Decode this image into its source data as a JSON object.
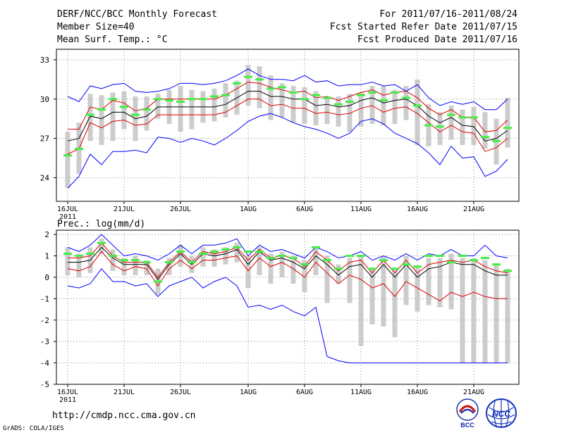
{
  "header": {
    "title": "DERF/NCC/BCC Monthly Forecast",
    "member_size": "Member Size=40",
    "temp_label": "Mean Surf. Temp.: °C",
    "forecast_for": "For 2011/07/16-2011/08/24",
    "start_date": "Fcst Started Refer Date 2011/07/15",
    "produced_date": "Fcst Produced Date 2011/07/16"
  },
  "footer": {
    "url": "http://cmdp.ncc.cma.gov.cn",
    "grads": "GrADS: COLA/IGES",
    "logo_bcc": "BCC",
    "logo_ncc": "NCC"
  },
  "colors": {
    "max": "#0000ff",
    "min": "#0000ff",
    "upper": "#dd0000",
    "lower": "#dd0000",
    "mean": "#000000",
    "box": "#cccccc",
    "marker": "#44ee44",
    "grid": "#888888"
  },
  "chart_data": [
    {
      "type": "line",
      "title": "Mean Surf. Temp.: °C",
      "x": [
        "16JUL",
        "17JUL",
        "18JUL",
        "19JUL",
        "20JUL",
        "21JUL",
        "22JUL",
        "23JUL",
        "24JUL",
        "25JUL",
        "26JUL",
        "27JUL",
        "28JUL",
        "29JUL",
        "30JUL",
        "31JUL",
        "1AUG",
        "2AUG",
        "3AUG",
        "4AUG",
        "5AUG",
        "6AUG",
        "7AUG",
        "8AUG",
        "9AUG",
        "10AUG",
        "11AUG",
        "12AUG",
        "13AUG",
        "14AUG",
        "15AUG",
        "16AUG",
        "17AUG",
        "18AUG",
        "19AUG",
        "20AUG",
        "21AUG",
        "22AUG",
        "23AUG",
        "24AUG"
      ],
      "x_ticks": [
        "16JUL",
        "21JUL",
        "26JUL",
        "1AUG",
        "6AUG",
        "11AUG",
        "16AUG",
        "21AUG"
      ],
      "x_year": "2011",
      "ylim": [
        22.2,
        33.8
      ],
      "y_ticks": [
        24,
        27,
        30,
        33
      ],
      "series": [
        {
          "name": "max",
          "values": [
            23.2,
            24.1,
            25.8,
            25.0,
            26.0,
            26.0,
            26.1,
            25.9,
            27.1,
            27.0,
            26.7,
            27.0,
            26.8,
            26.5,
            27.0,
            27.6,
            28.3,
            28.7,
            28.9,
            28.6,
            28.2,
            27.9,
            27.7,
            27.4,
            27.0,
            27.4,
            28.3,
            28.5,
            28.1,
            27.4,
            27.0,
            26.6,
            25.9,
            25.0,
            26.4,
            25.5,
            25.6,
            24.1,
            24.5,
            25.4
          ]
        },
        {
          "name": "lower",
          "values": [
            25.8,
            26.2,
            28.2,
            27.8,
            28.3,
            28.4,
            28.0,
            28.1,
            28.8,
            28.8,
            28.8,
            28.8,
            28.8,
            28.8,
            29.0,
            29.5,
            30.0,
            30.0,
            29.5,
            29.6,
            29.3,
            29.3,
            28.9,
            29.0,
            28.8,
            28.9,
            29.3,
            29.5,
            29.0,
            29.3,
            29.4,
            28.9,
            28.2,
            27.5,
            28.0,
            27.5,
            27.4,
            26.0,
            26.3,
            27.0
          ]
        },
        {
          "name": "mean",
          "values": [
            26.8,
            27.0,
            28.7,
            28.5,
            29.0,
            29.0,
            28.5,
            28.7,
            29.4,
            29.4,
            29.4,
            29.4,
            29.4,
            29.4,
            29.6,
            30.1,
            30.6,
            30.6,
            30.2,
            30.2,
            30.0,
            30.0,
            29.5,
            29.6,
            29.4,
            29.5,
            29.9,
            30.1,
            29.7,
            29.9,
            30.0,
            29.5,
            28.7,
            28.2,
            28.6,
            28.0,
            27.9,
            26.8,
            27.0,
            27.6
          ]
        },
        {
          "name": "upper",
          "values": [
            27.7,
            27.7,
            29.4,
            29.2,
            29.9,
            29.7,
            29.1,
            29.3,
            30.0,
            30.0,
            30.0,
            30.0,
            30.0,
            30.0,
            30.3,
            30.8,
            31.3,
            31.2,
            30.9,
            30.7,
            30.5,
            30.6,
            30.1,
            30.2,
            29.9,
            30.2,
            30.5,
            30.7,
            30.3,
            30.5,
            30.6,
            30.1,
            29.3,
            28.8,
            29.2,
            28.6,
            28.6,
            27.5,
            27.6,
            28.4
          ]
        },
        {
          "name": "min",
          "values": [
            30.2,
            29.8,
            31.0,
            30.8,
            31.1,
            31.2,
            30.6,
            30.5,
            30.6,
            30.8,
            31.2,
            31.2,
            31.1,
            31.2,
            31.4,
            31.8,
            32.3,
            31.8,
            31.5,
            31.5,
            31.4,
            31.8,
            31.3,
            31.4,
            31.0,
            31.1,
            31.1,
            31.3,
            31.0,
            31.1,
            30.6,
            31.1,
            30.1,
            29.5,
            29.8,
            29.6,
            29.8,
            29.2,
            29.2,
            30.0
          ]
        }
      ],
      "box_low": [
        23.2,
        24.3,
        26.8,
        26.5,
        26.8,
        27.7,
        26.8,
        27.6,
        28.5,
        28.1,
        27.5,
        27.7,
        28.2,
        28.3,
        28.6,
        28.8,
        29.5,
        29.3,
        28.4,
        28.6,
        28.2,
        28.1,
        28.0,
        28.1,
        27.9,
        27.5,
        27.9,
        28.1,
        28.0,
        28.1,
        28.4,
        26.5,
        26.4,
        26.5,
        26.9,
        26.5,
        26.5,
        26.2,
        25.0,
        26.3
      ],
      "box_high": [
        27.5,
        28.2,
        30.4,
        30.3,
        30.5,
        30.6,
        30.2,
        30.2,
        30.4,
        30.7,
        31.0,
        30.7,
        30.6,
        30.8,
        31.2,
        31.4,
        32.6,
        32.5,
        31.8,
        31.2,
        31.0,
        30.9,
        30.6,
        30.2,
        30.2,
        30.4,
        30.5,
        31.0,
        31.0,
        30.7,
        31.0,
        31.5,
        29.6,
        29.0,
        29.5,
        29.2,
        29.4,
        29.0,
        28.5,
        30.1
      ],
      "markers": [
        25.7,
        26.2,
        28.8,
        29.2,
        30.0,
        29.4,
        28.8,
        29.2,
        30.0,
        29.9,
        29.8,
        30.0,
        30.0,
        30.2,
        30.3,
        31.2,
        31.7,
        31.5,
        30.8,
        30.9,
        30.5,
        30.0,
        30.3,
        30.1,
        29.6,
        29.8,
        30.3,
        30.5,
        29.9,
        30.5,
        30.1,
        29.5,
        28.0,
        27.9,
        28.8,
        28.6,
        28.6,
        27.1,
        26.8,
        27.8
      ]
    },
    {
      "type": "line",
      "title": "Prec.: log(mm/d)",
      "x": [
        "16JUL",
        "17JUL",
        "18JUL",
        "19JUL",
        "20JUL",
        "21JUL",
        "22JUL",
        "23JUL",
        "24JUL",
        "25JUL",
        "26JUL",
        "27JUL",
        "28JUL",
        "29JUL",
        "30JUL",
        "31JUL",
        "1AUG",
        "2AUG",
        "3AUG",
        "4AUG",
        "5AUG",
        "6AUG",
        "7AUG",
        "8AUG",
        "9AUG",
        "10AUG",
        "11AUG",
        "12AUG",
        "13AUG",
        "14AUG",
        "15AUG",
        "16AUG",
        "17AUG",
        "18AUG",
        "19AUG",
        "20AUG",
        "21AUG",
        "22AUG",
        "23AUG",
        "24AUG"
      ],
      "x_ticks": [
        "16JUL",
        "21JUL",
        "26JUL",
        "1AUG",
        "6AUG",
        "11AUG",
        "16AUG",
        "21AUG"
      ],
      "x_year": "2011",
      "ylim": [
        -5,
        2.2
      ],
      "y_ticks": [
        -5,
        -4,
        -3,
        -2,
        -1,
        0,
        1,
        2
      ],
      "series": [
        {
          "name": "min",
          "values": [
            -0.4,
            -0.5,
            -0.3,
            0.4,
            -0.2,
            -0.2,
            -0.4,
            -0.3,
            -0.9,
            -0.4,
            -0.2,
            0.0,
            -0.5,
            -0.2,
            0.0,
            -0.4,
            -1.4,
            -1.3,
            -1.5,
            -1.3,
            -1.6,
            -1.8,
            -1.4,
            -3.7,
            -3.9,
            -4.0,
            -4.0,
            -4.0,
            -4.0,
            -4.0,
            -4.0,
            -4.0,
            -4.0,
            -4.0,
            -4.0,
            -4.0,
            -4.0,
            -4.0,
            -4.0,
            -4.0
          ]
        },
        {
          "name": "lower",
          "values": [
            0.4,
            0.3,
            0.5,
            1.2,
            0.6,
            0.3,
            0.5,
            0.4,
            -0.4,
            0.4,
            0.8,
            0.4,
            0.8,
            0.8,
            0.9,
            1.0,
            0.3,
            0.9,
            0.5,
            0.7,
            0.4,
            0.0,
            0.7,
            0.2,
            -0.3,
            0.1,
            -0.1,
            -0.5,
            -0.3,
            -0.9,
            -0.2,
            -0.5,
            -0.8,
            -1.1,
            -0.7,
            -0.9,
            -0.7,
            -0.9,
            -1.0,
            -1.0
          ]
        },
        {
          "name": "mean",
          "values": [
            0.7,
            0.7,
            0.8,
            1.4,
            0.9,
            0.6,
            0.6,
            0.6,
            -0.1,
            0.6,
            1.1,
            0.6,
            1.1,
            1.0,
            1.1,
            1.3,
            0.6,
            1.2,
            0.8,
            0.9,
            0.7,
            0.4,
            1.0,
            0.6,
            0.1,
            0.5,
            0.6,
            0.0,
            0.6,
            0.0,
            0.6,
            0.0,
            0.4,
            0.5,
            0.7,
            0.6,
            0.6,
            0.3,
            0.1,
            0.1
          ]
        },
        {
          "name": "upper",
          "values": [
            0.9,
            0.9,
            1.0,
            1.6,
            1.0,
            0.7,
            0.7,
            0.7,
            0.0,
            0.7,
            1.2,
            0.7,
            1.2,
            1.1,
            1.2,
            1.4,
            0.8,
            1.3,
            0.9,
            1.0,
            0.9,
            0.5,
            1.2,
            0.8,
            0.3,
            0.7,
            0.8,
            0.2,
            0.8,
            0.2,
            0.8,
            0.2,
            0.6,
            0.7,
            0.8,
            0.7,
            0.8,
            0.5,
            0.3,
            0.2
          ]
        },
        {
          "name": "max",
          "values": [
            1.4,
            1.2,
            1.5,
            2.0,
            1.5,
            1.0,
            1.1,
            1.0,
            0.8,
            1.1,
            1.5,
            1.1,
            1.5,
            1.5,
            1.6,
            1.8,
            1.0,
            1.5,
            1.2,
            1.3,
            1.1,
            0.9,
            1.4,
            1.2,
            0.9,
            1.0,
            1.2,
            0.8,
            1.0,
            0.8,
            1.1,
            0.8,
            1.1,
            1.0,
            1.3,
            1.0,
            1.0,
            1.5,
            1.0,
            0.9
          ]
        }
      ],
      "box_low": [
        0.1,
        0.0,
        0.2,
        1.1,
        0.3,
        0.1,
        0.1,
        0.1,
        -0.8,
        0.1,
        0.5,
        0.2,
        0.5,
        0.5,
        0.6,
        0.7,
        -0.5,
        0.1,
        -0.3,
        0.0,
        -0.3,
        -0.7,
        0.1,
        -1.2,
        -0.3,
        -1.2,
        -3.2,
        -2.2,
        -2.3,
        -2.8,
        -1.3,
        -1.6,
        -1.3,
        -1.4,
        -1.5,
        -4.0,
        -4.0,
        -4.0,
        -4.0,
        -4.0
      ],
      "box_high": [
        1.4,
        1.1,
        1.4,
        1.8,
        1.3,
        0.9,
        1.0,
        0.8,
        0.4,
        0.9,
        1.5,
        1.0,
        1.4,
        1.3,
        1.4,
        1.6,
        1.0,
        1.4,
        1.1,
        1.2,
        1.0,
        0.8,
        1.4,
        1.0,
        0.6,
        0.9,
        1.0,
        0.4,
        1.0,
        0.4,
        1.0,
        0.5,
        0.9,
        0.9,
        1.1,
        0.9,
        0.9,
        0.8,
        0.6,
        0.4
      ],
      "markers": [
        1.1,
        1.0,
        1.1,
        1.6,
        1.0,
        0.8,
        0.8,
        0.7,
        -0.2,
        0.7,
        1.2,
        0.7,
        1.1,
        1.2,
        1.3,
        1.4,
        1.2,
        1.2,
        0.9,
        1.0,
        0.9,
        0.6,
        1.4,
        0.8,
        0.4,
        1.0,
        1.0,
        0.4,
        0.8,
        0.4,
        0.6,
        0.5,
        1.0,
        1.0,
        0.7,
        1.0,
        0.8,
        0.9,
        0.6,
        0.3
      ]
    }
  ]
}
